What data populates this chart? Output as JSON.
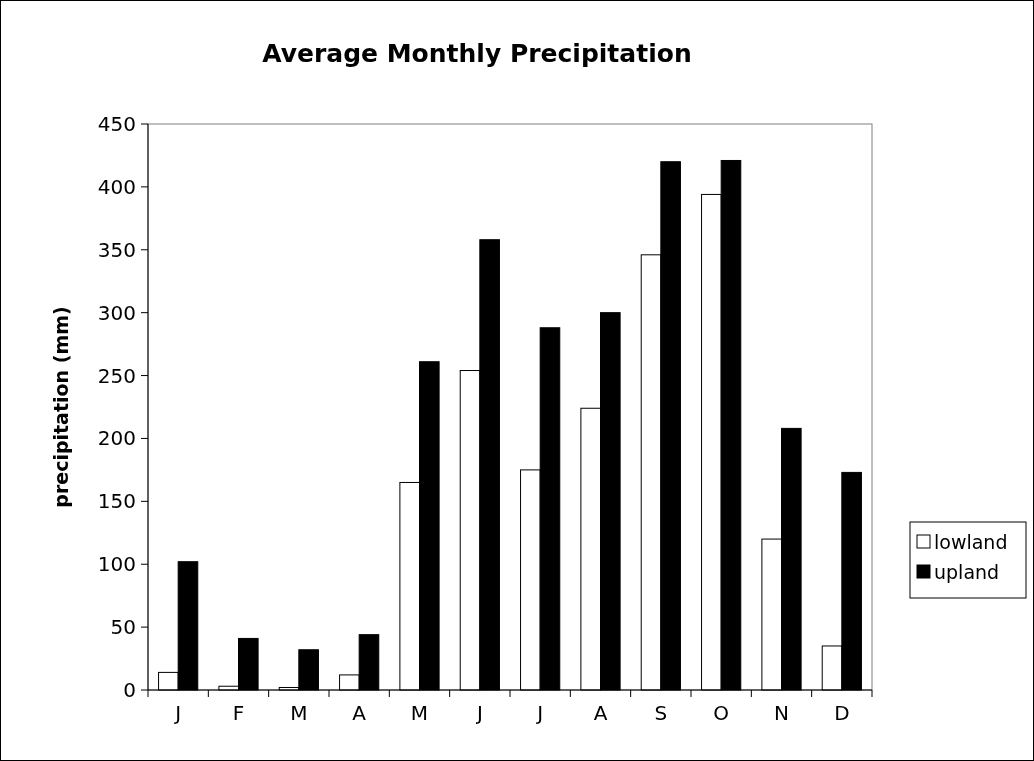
{
  "chart_data": {
    "type": "bar",
    "title": "Average Monthly Precipitation",
    "ylabel": "precipitation (mm)",
    "categories": [
      "J",
      "F",
      "M",
      "A",
      "M",
      "J",
      "J",
      "A",
      "S",
      "O",
      "N",
      "D"
    ],
    "series": [
      {
        "name": "lowland",
        "color": "#ffffff",
        "values": [
          14,
          3,
          2,
          12,
          165,
          254,
          175,
          224,
          346,
          394,
          120,
          35
        ]
      },
      {
        "name": "upland",
        "color": "#000000",
        "values": [
          102,
          41,
          32,
          44,
          261,
          358,
          288,
          300,
          420,
          421,
          208,
          173
        ]
      }
    ],
    "ylim": [
      0,
      450
    ],
    "yticks": [
      0,
      50,
      100,
      150,
      200,
      250,
      300,
      350,
      400,
      450
    ],
    "grid": false,
    "legend": "right"
  }
}
